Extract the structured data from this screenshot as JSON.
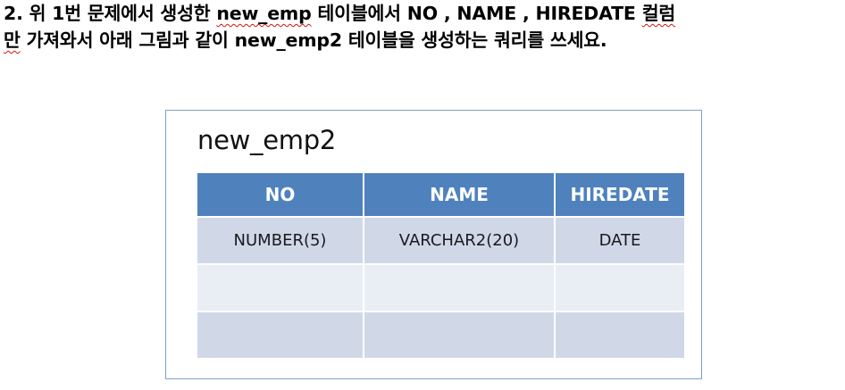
{
  "question": {
    "line1": {
      "before": "2. 위 1번 문제에서 생성한 ",
      "highlight": "new_emp",
      "middle": " 테이블에서 NO , NAME , HIREDATE ",
      "end": "컬럼"
    },
    "line2": {
      "start": "만",
      "text": " 가져와서 아래 그림과 같이 new_emp2 테이블을 생성하는 쿼리를 쓰세요."
    }
  },
  "table": {
    "title": "new_emp2",
    "columns": [
      "NO",
      "NAME",
      "HIREDATE"
    ],
    "rows": [
      [
        "NUMBER(5)",
        "VARCHAR2(20)",
        "DATE"
      ],
      [
        "",
        "",
        ""
      ],
      [
        "",
        "",
        ""
      ]
    ]
  },
  "colors": {
    "header_bg": "#4f81bd",
    "row_odd_bg": "#d0d8e8",
    "row_even_bg": "#e9edf4",
    "frame_border": "#7f9fc6",
    "spellcheck": "#d11414"
  }
}
